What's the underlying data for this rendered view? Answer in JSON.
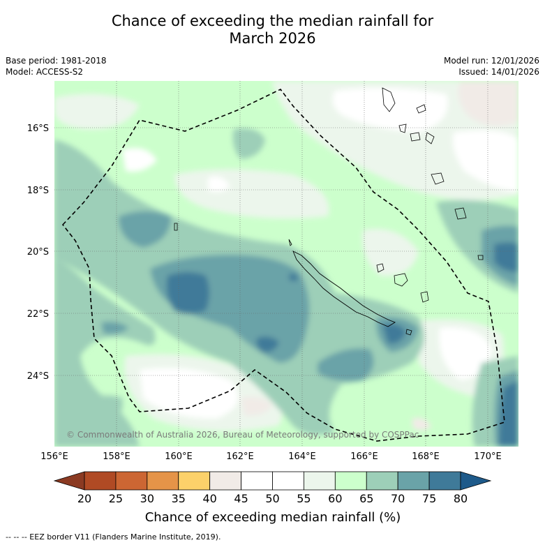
{
  "title_line1": "Chance of exceeding the median rainfall for",
  "title_line2": "March 2026",
  "base_period": "Base period: 1981-2018",
  "model": "Model: ACCESS-S2",
  "model_run": "Model run: 12/01/2026",
  "issued": "Issued: 14/01/2026",
  "lat_labels": [
    "16°S",
    "18°S",
    "20°S",
    "22°S",
    "24°S"
  ],
  "lon_labels": [
    "156°E",
    "158°E",
    "160°E",
    "162°E",
    "164°E",
    "166°E",
    "168°E",
    "170°E"
  ],
  "copyright": "© Commonwealth of Australia 2026, Bureau of Meteorology, supported by COSPPac",
  "colorbar": {
    "ticks": [
      "20",
      "25",
      "30",
      "35",
      "40",
      "45",
      "50",
      "55",
      "60",
      "65",
      "70",
      "75",
      "80"
    ],
    "colors": [
      "#8b3a22",
      "#b04a24",
      "#cc6633",
      "#e59448",
      "#fcd16a",
      "#f1ebe7",
      "#ffffff",
      "#ffffff",
      "#ecf6ec",
      "#ccffcc",
      "#9dcfb8",
      "#6aa3a8",
      "#3f7a99",
      "#1e5a8a"
    ],
    "title": "Chance of exceeding median rainfall (%)"
  },
  "legend_text": "--  --  -- EEZ border V11 (Flanders Marine Institute, 2019)."
}
